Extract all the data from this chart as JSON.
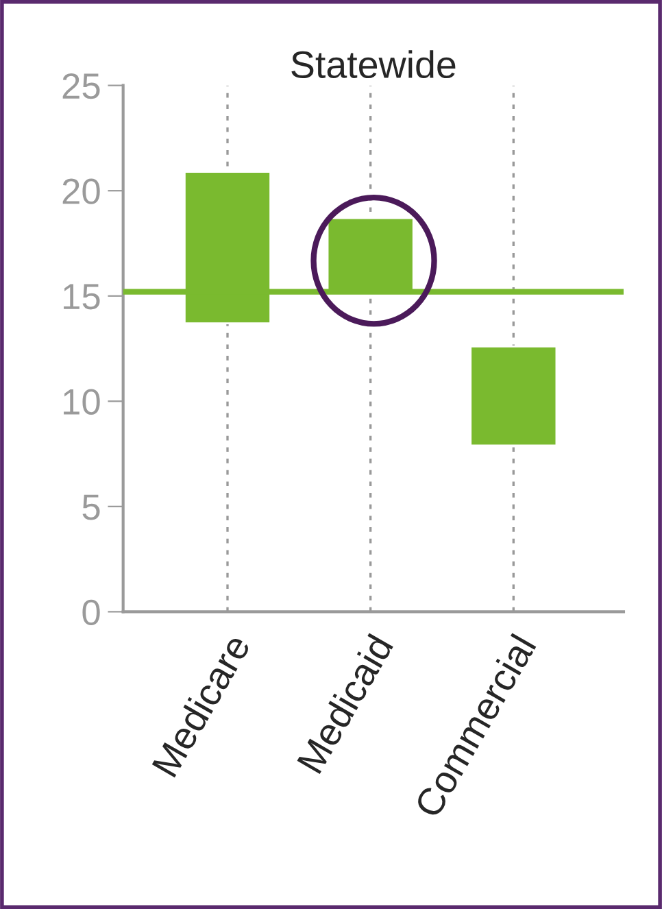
{
  "chart_data": {
    "type": "bar",
    "title": "Statewide",
    "categories": [
      "Medicare",
      "Medicaid",
      "Commercial"
    ],
    "base": [
      13.7,
      15.2,
      7.9
    ],
    "values": [
      7.2,
      3.5,
      4.7
    ],
    "color": "#7aba2f",
    "ylim": [
      0,
      25
    ],
    "yticks": [
      0,
      5,
      10,
      15,
      20,
      25
    ],
    "grid": "x",
    "ref_lines": [
      {
        "axis": "y",
        "value": 15.2,
        "color": "#7aba2f"
      }
    ]
  }
}
